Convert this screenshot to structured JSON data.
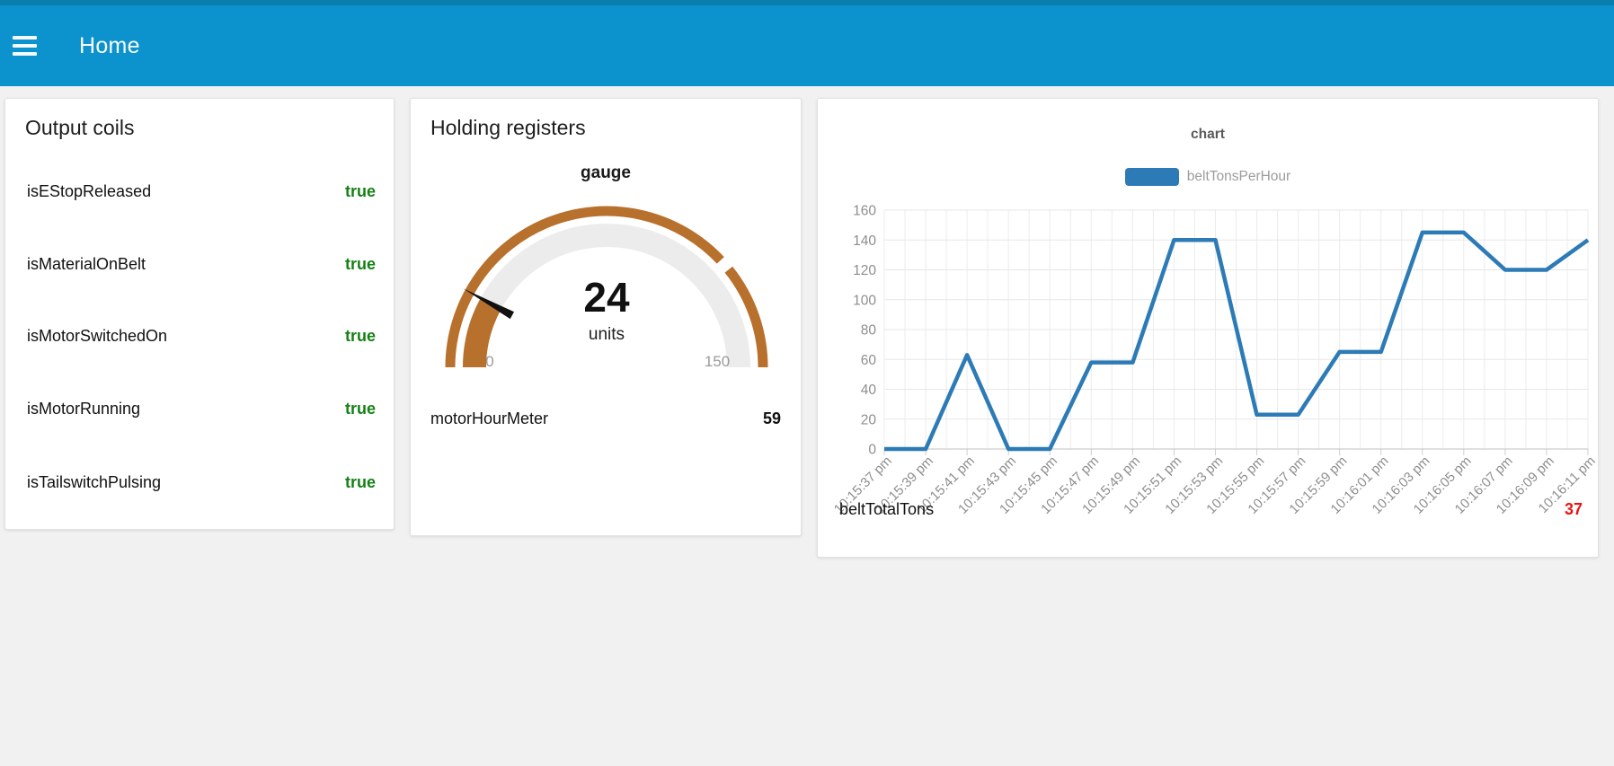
{
  "header": {
    "title": "Home",
    "bg": "#0c92cc",
    "strip": "#0a7fae"
  },
  "cards": {
    "output_coils": {
      "title": "Output coils",
      "value_color": "#148214",
      "rows": [
        {
          "label": "isEStopReleased",
          "value": "true"
        },
        {
          "label": "isMaterialOnBelt",
          "value": "true"
        },
        {
          "label": "isMotorSwitchedOn",
          "value": "true"
        },
        {
          "label": "isMotorRunning",
          "value": "true"
        },
        {
          "label": "isTailswitchPulsing",
          "value": "true"
        }
      ]
    },
    "holding_registers": {
      "title": "Holding registers",
      "gauge": {
        "label": "gauge",
        "value": 24,
        "units": "units",
        "min": 0,
        "max": 150,
        "color": "#b8702d",
        "track_color": "#ececec",
        "needle_color": "#111111"
      },
      "rows": [
        {
          "label": "motorHourMeter",
          "value": 59
        }
      ]
    },
    "chart_card": {
      "title": "chart",
      "legend": [
        {
          "label": "beltTonsPerHour",
          "color": "#2d7bb6"
        }
      ],
      "footer_rows": [
        {
          "label": "beltTotalTons",
          "value": 37,
          "color": "#ee1111"
        }
      ]
    }
  },
  "chart_data": {
    "type": "line",
    "title": "chart",
    "x_labels": [
      "10:15:37 pm",
      "10:15:39 pm",
      "10:15:41 pm",
      "10:15:43 pm",
      "10:15:45 pm",
      "10:15:47 pm",
      "10:15:49 pm",
      "10:15:51 pm",
      "10:15:53 pm",
      "10:15:55 pm",
      "10:15:57 pm",
      "10:15:59 pm",
      "10:16:01 pm",
      "10:16:03 pm",
      "10:16:05 pm",
      "10:16:07 pm",
      "10:16:09 pm",
      "10:16:11 pm"
    ],
    "y_ticks": [
      0,
      20,
      40,
      60,
      80,
      100,
      120,
      140,
      160
    ],
    "ylim": [
      0,
      160
    ],
    "grid": true,
    "legend_position": "top",
    "series": [
      {
        "name": "beltTonsPerHour",
        "color": "#2d7bb6",
        "values": [
          0,
          0,
          63,
          0,
          0,
          58,
          58,
          140,
          140,
          23,
          23,
          65,
          65,
          145,
          145,
          120,
          120,
          140
        ]
      }
    ]
  }
}
